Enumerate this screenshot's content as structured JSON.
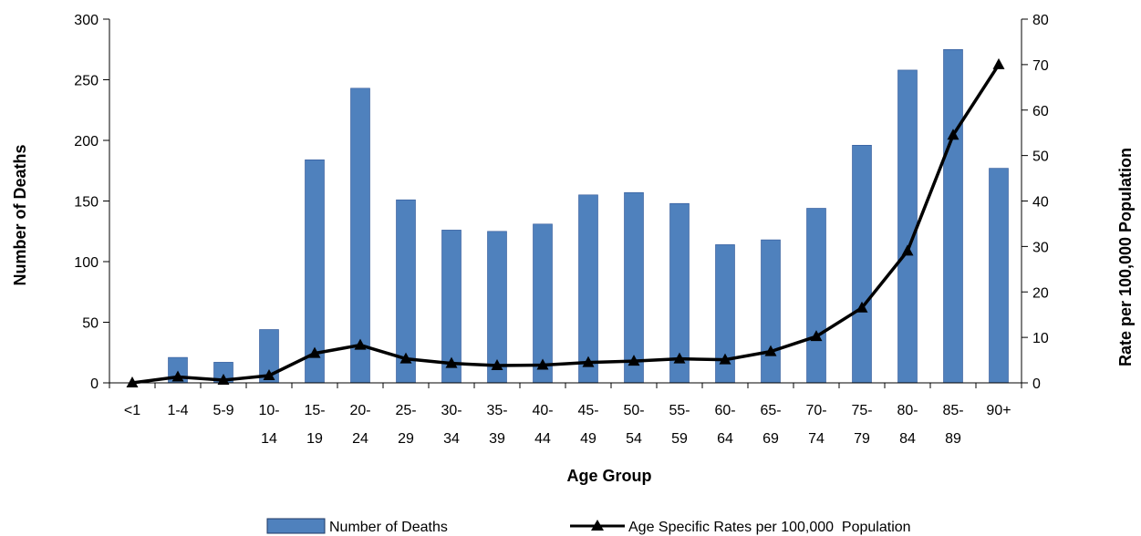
{
  "chart_data": {
    "type": "bar+line",
    "title": "",
    "xlabel": "Age Group",
    "ylabel_left": "Number of Deaths",
    "ylabel_right": "Rate per 100,000 Population",
    "ylim_left": [
      0,
      300
    ],
    "ylim_right": [
      0,
      80
    ],
    "yticks_left": [
      "0",
      "50",
      "100",
      "150",
      "200",
      "250",
      "300"
    ],
    "yticks_right": [
      "0",
      "10",
      "20",
      "30",
      "40",
      "50",
      "60",
      "70",
      "80"
    ],
    "grid": false,
    "legend_position": "bottom",
    "categories": [
      [
        "<1"
      ],
      [
        "1-4"
      ],
      [
        "5-9"
      ],
      [
        "10-",
        "14"
      ],
      [
        "15-",
        "19"
      ],
      [
        "20-",
        "24"
      ],
      [
        "25-",
        "29"
      ],
      [
        "30-",
        "34"
      ],
      [
        "35-",
        "39"
      ],
      [
        "40-",
        "44"
      ],
      [
        "45-",
        "49"
      ],
      [
        "50-",
        "54"
      ],
      [
        "55-",
        "59"
      ],
      [
        "60-",
        "64"
      ],
      [
        "65-",
        "69"
      ],
      [
        "70-",
        "74"
      ],
      [
        "75-",
        "79"
      ],
      [
        "80-",
        "84"
      ],
      [
        "85-",
        "89"
      ],
      [
        "90+"
      ]
    ],
    "series": [
      {
        "name": "Number of Deaths",
        "type": "bar",
        "axis": "left",
        "color": "#4f81bd",
        "values": [
          0,
          21,
          17,
          44,
          184,
          243,
          151,
          126,
          125,
          131,
          155,
          157,
          148,
          114,
          118,
          144,
          196,
          258,
          275,
          177
        ]
      },
      {
        "name": "Age Specific Rates per 100,000  Population",
        "type": "line",
        "axis": "right",
        "color": "#000000",
        "marker": "triangle",
        "values": [
          0,
          1.3,
          0.6,
          1.6,
          6.5,
          8.3,
          5.3,
          4.3,
          3.8,
          3.9,
          4.5,
          4.8,
          5.3,
          5.1,
          6.9,
          10.2,
          16.5,
          29.0,
          54.5,
          70.0
        ]
      }
    ]
  }
}
